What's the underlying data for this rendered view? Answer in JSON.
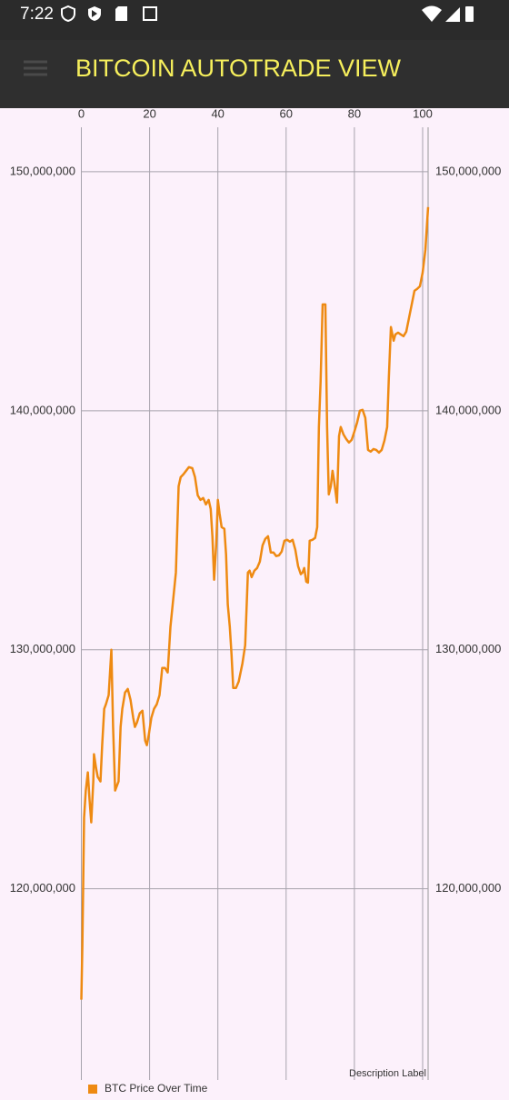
{
  "status_bar": {
    "time": "7:22"
  },
  "app_bar": {
    "title": "BITCOIN AUTOTRADE VIEW"
  },
  "chart_data": {
    "type": "line",
    "x": [
      0,
      0.3,
      0.8,
      1.3,
      1.9,
      2.4,
      2.9,
      3.5,
      3.7,
      4.3,
      4.8,
      5.6,
      6.1,
      6.7,
      7.2,
      8.0,
      8.8,
      9.3,
      9.9,
      10.4,
      10.9,
      11.5,
      12.0,
      12.8,
      13.6,
      14.4,
      15.2,
      15.7,
      16.3,
      17.1,
      17.9,
      18.7,
      19.2,
      19.7,
      20.5,
      21.3,
      22.1,
      22.9,
      23.7,
      24.5,
      25.3,
      26.1,
      26.9,
      27.7,
      28.5,
      29.1,
      29.9,
      30.7,
      31.5,
      32.5,
      33.3,
      34.1,
      34.9,
      35.7,
      36.5,
      37.3,
      37.9,
      38.4,
      38.9,
      39.5,
      40.0,
      40.5,
      41.1,
      41.9,
      42.4,
      42.9,
      43.5,
      44.0,
      44.5,
      45.3,
      46.1,
      47.2,
      48.0,
      48.8,
      49.3,
      49.9,
      50.7,
      51.5,
      52.3,
      53.1,
      53.9,
      54.7,
      55.5,
      56.3,
      57.1,
      57.9,
      58.7,
      59.5,
      60.3,
      61.1,
      61.9,
      62.7,
      63.5,
      64.3,
      64.8,
      65.3,
      65.9,
      66.4,
      66.9,
      67.7,
      68.5,
      69.1,
      69.6,
      70.1,
      70.7,
      71.5,
      72.0,
      72.5,
      73.1,
      73.6,
      74.1,
      74.9,
      75.5,
      76.0,
      76.8,
      77.6,
      78.4,
      79.2,
      80.0,
      80.8,
      81.6,
      82.4,
      83.2,
      84.0,
      84.8,
      85.6,
      86.4,
      87.2,
      88.0,
      88.8,
      89.6,
      90.1,
      90.7,
      91.5,
      92.0,
      92.8,
      93.6,
      94.4,
      95.2,
      96.0,
      96.8,
      97.6,
      98.4,
      99.2,
      100.0,
      100.8,
      101.6
    ],
    "series": [
      {
        "name": "BTC Price Over Time",
        "color": "#ee8a12",
        "values": [
          115360000,
          117640000,
          122970000,
          124110000,
          124870000,
          123730000,
          122780000,
          124490000,
          125630000,
          125060000,
          124680000,
          124490000,
          126010000,
          127530000,
          127720000,
          128100000,
          130000000,
          126770000,
          124110000,
          124300000,
          124490000,
          126770000,
          127530000,
          128210000,
          128360000,
          127910000,
          127150000,
          126770000,
          126960000,
          127340000,
          127450000,
          126200000,
          126010000,
          126390000,
          127150000,
          127530000,
          127720000,
          128100000,
          129240000,
          129240000,
          129050000,
          130950000,
          132090000,
          133230000,
          136840000,
          137220000,
          137340000,
          137490000,
          137640000,
          137600000,
          137220000,
          136460000,
          136270000,
          136350000,
          136080000,
          136270000,
          135890000,
          134750000,
          132930000,
          134370000,
          136270000,
          135700000,
          135130000,
          135060000,
          133990000,
          131900000,
          130950000,
          129810000,
          128400000,
          128400000,
          128670000,
          129430000,
          130190000,
          133230000,
          133310000,
          133040000,
          133310000,
          133420000,
          133690000,
          134370000,
          134640000,
          134750000,
          134070000,
          134070000,
          133920000,
          133950000,
          134110000,
          134560000,
          134600000,
          134520000,
          134600000,
          134180000,
          133500000,
          133160000,
          133230000,
          133420000,
          132850000,
          132810000,
          134560000,
          134600000,
          134680000,
          135130000,
          139320000,
          141220000,
          144450000,
          144450000,
          139320000,
          136500000,
          136840000,
          137490000,
          137030000,
          136160000,
          138940000,
          139320000,
          139010000,
          138820000,
          138670000,
          138780000,
          139130000,
          139510000,
          140000000,
          140040000,
          139700000,
          138360000,
          138290000,
          138400000,
          138360000,
          138250000,
          138360000,
          138750000,
          139320000,
          141410000,
          143500000,
          142930000,
          143190000,
          143270000,
          143190000,
          143120000,
          143310000,
          143880000,
          144450000,
          145020000,
          145100000,
          145210000,
          145780000,
          146730000,
          148520000
        ]
      }
    ],
    "xlim": [
      0,
      101.6
    ],
    "ylim": [
      112000000,
      151860000
    ],
    "xticks": [
      0,
      20,
      40,
      60,
      80,
      100
    ],
    "yticks": [
      {
        "value": 120000000,
        "label": "120,000,000"
      },
      {
        "value": 130000000,
        "label": "130,000,000"
      },
      {
        "value": 140000000,
        "label": "140,000,000"
      },
      {
        "value": 150000000,
        "label": "150,000,000"
      }
    ],
    "grid": true,
    "legend": "bottom-left",
    "description": "Description Label"
  }
}
